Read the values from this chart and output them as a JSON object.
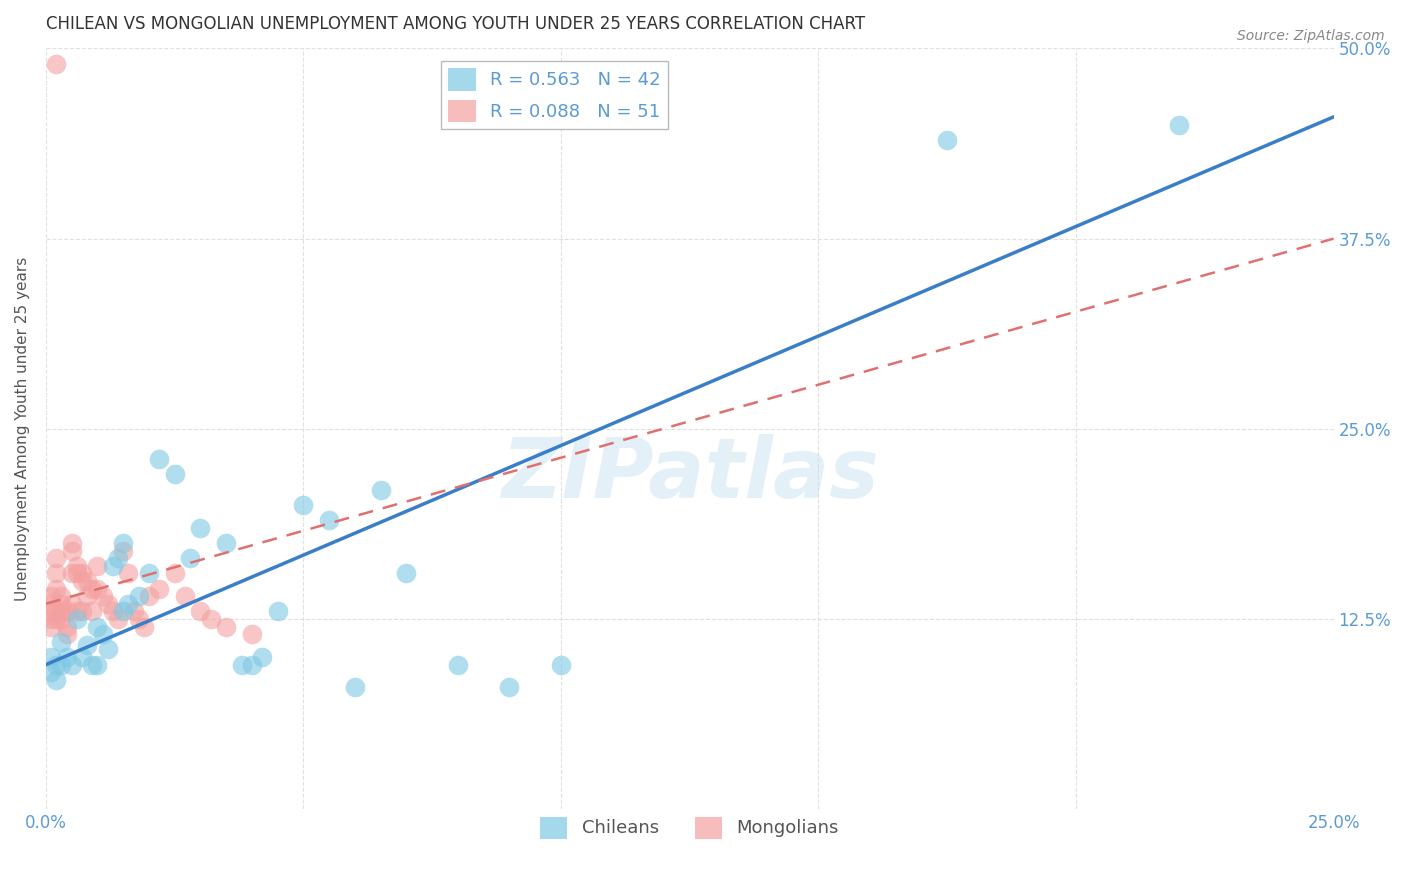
{
  "title": "CHILEAN VS MONGOLIAN UNEMPLOYMENT AMONG YOUTH UNDER 25 YEARS CORRELATION CHART",
  "source": "Source: ZipAtlas.com",
  "ylabel": "Unemployment Among Youth under 25 years",
  "xlim": [
    0.0,
    0.25
  ],
  "ylim": [
    0.0,
    0.5
  ],
  "xticks": [
    0.0,
    0.05,
    0.1,
    0.15,
    0.2,
    0.25
  ],
  "yticks": [
    0.0,
    0.125,
    0.25,
    0.375,
    0.5
  ],
  "xticklabels": [
    "0.0%",
    "",
    "",
    "",
    "",
    "25.0%"
  ],
  "yticklabels_right": [
    "12.5%",
    "25.0%",
    "37.5%",
    "50.0%"
  ],
  "background_color": "#ffffff",
  "grid_color": "#e0e0e0",
  "watermark": "ZIPatlas",
  "chileans_color": "#7ec8e3",
  "mongolians_color": "#f4a0a0",
  "blue_line_color": "#3a7ec8",
  "pink_line_color": "#e07070",
  "tick_label_color": "#5b9bd5",
  "R_chileans": 0.563,
  "N_chileans": 42,
  "R_mongolians": 0.088,
  "N_mongolians": 51,
  "chileans_x": [
    0.001,
    0.001,
    0.002,
    0.002,
    0.003,
    0.003,
    0.004,
    0.005,
    0.006,
    0.007,
    0.008,
    0.009,
    0.01,
    0.01,
    0.011,
    0.012,
    0.013,
    0.014,
    0.015,
    0.015,
    0.016,
    0.018,
    0.02,
    0.022,
    0.025,
    0.028,
    0.03,
    0.035,
    0.038,
    0.04,
    0.042,
    0.045,
    0.05,
    0.055,
    0.06,
    0.065,
    0.07,
    0.08,
    0.09,
    0.1,
    0.175,
    0.22
  ],
  "chileans_y": [
    0.09,
    0.1,
    0.085,
    0.095,
    0.11,
    0.095,
    0.1,
    0.095,
    0.125,
    0.1,
    0.108,
    0.095,
    0.12,
    0.095,
    0.115,
    0.105,
    0.16,
    0.165,
    0.13,
    0.175,
    0.135,
    0.14,
    0.155,
    0.23,
    0.22,
    0.165,
    0.185,
    0.175,
    0.095,
    0.095,
    0.1,
    0.13,
    0.2,
    0.19,
    0.08,
    0.21,
    0.155,
    0.095,
    0.08,
    0.095,
    0.44,
    0.45
  ],
  "mongolians_x": [
    0.001,
    0.001,
    0.001,
    0.001,
    0.001,
    0.002,
    0.002,
    0.002,
    0.002,
    0.002,
    0.003,
    0.003,
    0.003,
    0.003,
    0.004,
    0.004,
    0.004,
    0.005,
    0.005,
    0.005,
    0.005,
    0.006,
    0.006,
    0.006,
    0.007,
    0.007,
    0.007,
    0.008,
    0.008,
    0.009,
    0.009,
    0.01,
    0.01,
    0.011,
    0.012,
    0.013,
    0.014,
    0.015,
    0.016,
    0.017,
    0.018,
    0.019,
    0.02,
    0.022,
    0.025,
    0.027,
    0.03,
    0.032,
    0.035,
    0.04,
    0.002
  ],
  "mongolians_y": [
    0.13,
    0.125,
    0.12,
    0.135,
    0.14,
    0.145,
    0.125,
    0.13,
    0.155,
    0.165,
    0.135,
    0.13,
    0.125,
    0.14,
    0.13,
    0.12,
    0.115,
    0.135,
    0.155,
    0.17,
    0.175,
    0.155,
    0.16,
    0.13,
    0.15,
    0.155,
    0.13,
    0.14,
    0.15,
    0.145,
    0.13,
    0.16,
    0.145,
    0.14,
    0.135,
    0.13,
    0.125,
    0.17,
    0.155,
    0.13,
    0.125,
    0.12,
    0.14,
    0.145,
    0.155,
    0.14,
    0.13,
    0.125,
    0.12,
    0.115,
    0.49
  ],
  "blue_line_x": [
    0.0,
    0.25
  ],
  "blue_line_y": [
    0.095,
    0.455
  ],
  "pink_line_x": [
    0.0,
    0.25
  ],
  "pink_line_y": [
    0.135,
    0.375
  ]
}
